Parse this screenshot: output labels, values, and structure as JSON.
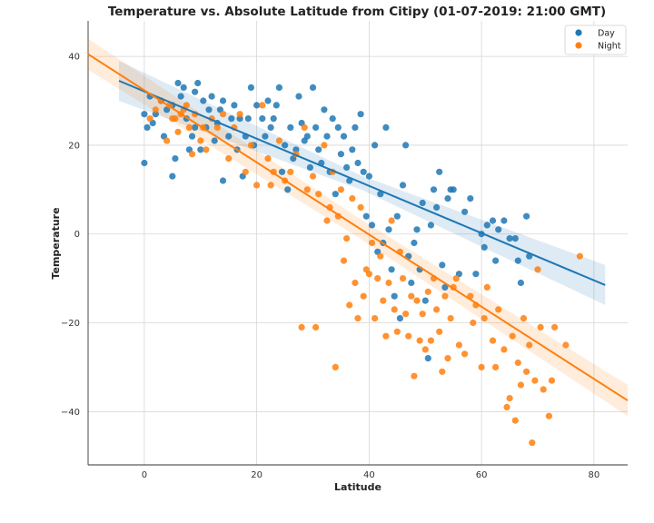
{
  "chart_data": {
    "type": "scatter",
    "title": "Temperature vs. Absolute Latitude from Citipy (01-07-2019: 21:00 GMT)",
    "xlabel": "Latitude",
    "ylabel": "Temperature",
    "xlim": [
      -10,
      86
    ],
    "ylim": [
      -52,
      48
    ],
    "xticks": [
      0,
      20,
      40,
      60,
      80
    ],
    "yticks": [
      -40,
      -20,
      0,
      20,
      40
    ],
    "grid": true,
    "legend_position": "top-right",
    "series": [
      {
        "name": "Day",
        "color": "#1f77b4",
        "points": [
          [
            0,
            16
          ],
          [
            0,
            27
          ],
          [
            0.5,
            24
          ],
          [
            1,
            31
          ],
          [
            1.5,
            25
          ],
          [
            2,
            27
          ],
          [
            3,
            30
          ],
          [
            3.5,
            22
          ],
          [
            4,
            28
          ],
          [
            5,
            13
          ],
          [
            5,
            29
          ],
          [
            5.5,
            17
          ],
          [
            6,
            34
          ],
          [
            6.5,
            31
          ],
          [
            7,
            33
          ],
          [
            7.5,
            26
          ],
          [
            8,
            19
          ],
          [
            8.5,
            22
          ],
          [
            9,
            24
          ],
          [
            9,
            32
          ],
          [
            9.5,
            34
          ],
          [
            10,
            19
          ],
          [
            10.5,
            30
          ],
          [
            11,
            24
          ],
          [
            11.5,
            28
          ],
          [
            12,
            31
          ],
          [
            12.5,
            21
          ],
          [
            13,
            25
          ],
          [
            13.5,
            28
          ],
          [
            14,
            12
          ],
          [
            14,
            30
          ],
          [
            15,
            22
          ],
          [
            15.5,
            26
          ],
          [
            16,
            29
          ],
          [
            16.5,
            19
          ],
          [
            17,
            26
          ],
          [
            17.5,
            13
          ],
          [
            18,
            22
          ],
          [
            18.5,
            26
          ],
          [
            19,
            33
          ],
          [
            19.5,
            20
          ],
          [
            20,
            29
          ],
          [
            21,
            26
          ],
          [
            21.5,
            22
          ],
          [
            22,
            30
          ],
          [
            22.5,
            24
          ],
          [
            23,
            26
          ],
          [
            23.5,
            29
          ],
          [
            24,
            33
          ],
          [
            24.5,
            14
          ],
          [
            25,
            20
          ],
          [
            25.5,
            10
          ],
          [
            26,
            24
          ],
          [
            26.5,
            17
          ],
          [
            27,
            19
          ],
          [
            27.5,
            31
          ],
          [
            28,
            25
          ],
          [
            28.5,
            21
          ],
          [
            29,
            22
          ],
          [
            29.5,
            15
          ],
          [
            30,
            33
          ],
          [
            30.5,
            24
          ],
          [
            31,
            19
          ],
          [
            31.5,
            16
          ],
          [
            32,
            28
          ],
          [
            32.5,
            22
          ],
          [
            33,
            14
          ],
          [
            33.5,
            26
          ],
          [
            34,
            9
          ],
          [
            34.5,
            24
          ],
          [
            35,
            18
          ],
          [
            35.5,
            22
          ],
          [
            36,
            15
          ],
          [
            36.5,
            12
          ],
          [
            37,
            19
          ],
          [
            37.5,
            24
          ],
          [
            38,
            16
          ],
          [
            38.5,
            27
          ],
          [
            39,
            14
          ],
          [
            39.5,
            4
          ],
          [
            40,
            13
          ],
          [
            40.5,
            2
          ],
          [
            41,
            20
          ],
          [
            41.5,
            -4
          ],
          [
            42,
            9
          ],
          [
            42.5,
            -2
          ],
          [
            43,
            24
          ],
          [
            43.5,
            1
          ],
          [
            44,
            -8
          ],
          [
            44.5,
            -14
          ],
          [
            45,
            4
          ],
          [
            45.5,
            -19
          ],
          [
            46,
            11
          ],
          [
            46.5,
            20
          ],
          [
            47,
            -5
          ],
          [
            47.5,
            -11
          ],
          [
            48,
            -2
          ],
          [
            48.5,
            1
          ],
          [
            49,
            -8
          ],
          [
            49.5,
            7
          ],
          [
            50,
            -15
          ],
          [
            50.5,
            -28
          ],
          [
            51,
            2
          ],
          [
            51.5,
            10
          ],
          [
            52,
            6
          ],
          [
            52.5,
            14
          ],
          [
            53,
            -7
          ],
          [
            53.5,
            -12
          ],
          [
            54,
            8
          ],
          [
            54.5,
            10
          ],
          [
            55,
            10
          ],
          [
            56,
            -9
          ],
          [
            57,
            5
          ],
          [
            58,
            8
          ],
          [
            59,
            -9
          ],
          [
            60,
            0
          ],
          [
            60.5,
            -3
          ],
          [
            61,
            2
          ],
          [
            62,
            3
          ],
          [
            62.5,
            -6
          ],
          [
            63,
            1
          ],
          [
            64,
            3
          ],
          [
            65,
            -1
          ],
          [
            66,
            -1
          ],
          [
            66.5,
            -6
          ],
          [
            67,
            -11
          ],
          [
            68,
            4
          ],
          [
            68.5,
            -5
          ]
        ]
      },
      {
        "name": "Night",
        "color": "#ff7f0e",
        "points": [
          [
            1,
            26
          ],
          [
            2,
            28
          ],
          [
            3,
            30
          ],
          [
            4,
            21
          ],
          [
            4.5,
            29
          ],
          [
            5,
            26
          ],
          [
            5.5,
            26
          ],
          [
            6,
            23
          ],
          [
            6.5,
            27
          ],
          [
            7,
            28
          ],
          [
            7.5,
            29
          ],
          [
            8,
            24
          ],
          [
            8.5,
            18
          ],
          [
            9,
            27
          ],
          [
            10,
            21
          ],
          [
            10.5,
            24
          ],
          [
            11,
            19
          ],
          [
            12,
            26
          ],
          [
            13,
            24
          ],
          [
            14,
            27
          ],
          [
            15,
            17
          ],
          [
            16,
            24
          ],
          [
            17,
            27
          ],
          [
            18,
            14
          ],
          [
            19,
            20
          ],
          [
            20,
            11
          ],
          [
            21,
            29
          ],
          [
            22,
            17
          ],
          [
            22.5,
            11
          ],
          [
            23,
            14
          ],
          [
            24,
            21
          ],
          [
            25,
            12
          ],
          [
            26,
            14
          ],
          [
            27,
            18
          ],
          [
            28,
            -21
          ],
          [
            28.5,
            24
          ],
          [
            29,
            10
          ],
          [
            30,
            13
          ],
          [
            30.5,
            -21
          ],
          [
            31,
            9
          ],
          [
            32,
            20
          ],
          [
            32.5,
            3
          ],
          [
            33,
            6
          ],
          [
            33.5,
            14
          ],
          [
            34,
            -30
          ],
          [
            34.5,
            4
          ],
          [
            35,
            10
          ],
          [
            35.5,
            -6
          ],
          [
            36,
            -1
          ],
          [
            36.5,
            -16
          ],
          [
            37,
            8
          ],
          [
            37.5,
            -11
          ],
          [
            38,
            -19
          ],
          [
            38.5,
            6
          ],
          [
            39,
            -14
          ],
          [
            39.5,
            -8
          ],
          [
            40,
            -9
          ],
          [
            40.5,
            -2
          ],
          [
            41,
            -19
          ],
          [
            41.5,
            -10
          ],
          [
            42,
            -5
          ],
          [
            42.5,
            -15
          ],
          [
            43,
            -23
          ],
          [
            43.5,
            -11
          ],
          [
            44,
            3
          ],
          [
            44.5,
            -17
          ],
          [
            45,
            -22
          ],
          [
            45.5,
            -4
          ],
          [
            46,
            -10
          ],
          [
            46.5,
            -18
          ],
          [
            47,
            -23
          ],
          [
            47.5,
            -14
          ],
          [
            48,
            -32
          ],
          [
            48.5,
            -15
          ],
          [
            49,
            -24
          ],
          [
            49.5,
            -18
          ],
          [
            50,
            -26
          ],
          [
            50.5,
            -13
          ],
          [
            51,
            -24
          ],
          [
            51.5,
            -10
          ],
          [
            52,
            -17
          ],
          [
            52.5,
            -22
          ],
          [
            53,
            -31
          ],
          [
            53.5,
            -14
          ],
          [
            54,
            -28
          ],
          [
            54.5,
            -19
          ],
          [
            55,
            -12
          ],
          [
            55.5,
            -10
          ],
          [
            56,
            -25
          ],
          [
            57,
            -27
          ],
          [
            58,
            -14
          ],
          [
            58.5,
            -20
          ],
          [
            59,
            -16
          ],
          [
            60,
            -30
          ],
          [
            60.5,
            -19
          ],
          [
            61,
            -12
          ],
          [
            62,
            -24
          ],
          [
            62.5,
            -30
          ],
          [
            63,
            -17
          ],
          [
            64,
            -26
          ],
          [
            64.5,
            -39
          ],
          [
            65,
            -37
          ],
          [
            65.5,
            -23
          ],
          [
            66,
            -42
          ],
          [
            66.5,
            -29
          ],
          [
            67,
            -34
          ],
          [
            67.5,
            -19
          ],
          [
            68,
            -31
          ],
          [
            68.5,
            -25
          ],
          [
            69,
            -47
          ],
          [
            69.5,
            -33
          ],
          [
            70,
            -8
          ],
          [
            70.5,
            -21
          ],
          [
            71,
            -35
          ],
          [
            72,
            -41
          ],
          [
            72.5,
            -33
          ],
          [
            73,
            -21
          ],
          [
            75,
            -25
          ],
          [
            77.5,
            -5
          ]
        ]
      }
    ],
    "regression": [
      {
        "series": "Day",
        "x0": -4.5,
        "y0": 34.5,
        "x1": 82,
        "y1": -11.5
      },
      {
        "series": "Night",
        "x0": -10,
        "y0": 40.5,
        "x1": 86,
        "y1": -37.5
      }
    ]
  }
}
